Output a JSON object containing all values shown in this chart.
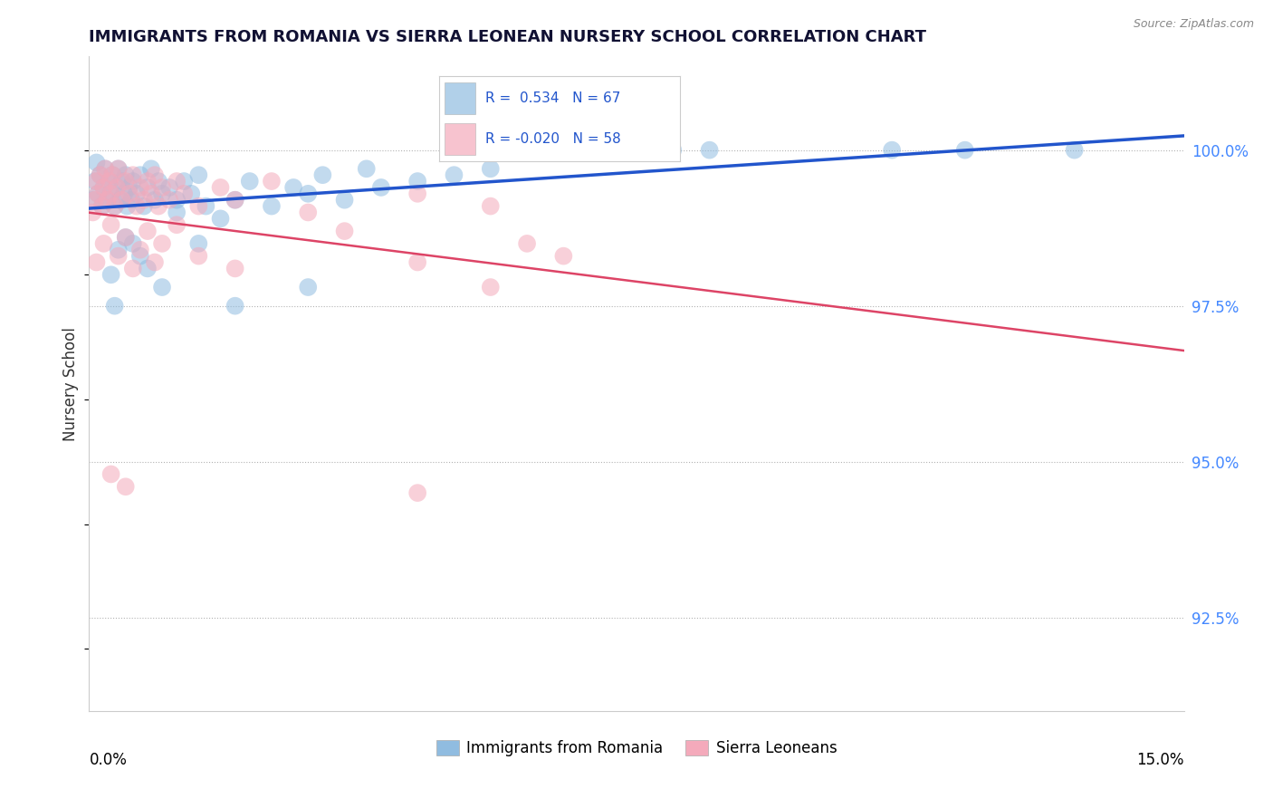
{
  "title": "IMMIGRANTS FROM ROMANIA VS SIERRA LEONEAN NURSERY SCHOOL CORRELATION CHART",
  "source": "Source: ZipAtlas.com",
  "ylabel": "Nursery School",
  "xlim": [
    0.0,
    15.0
  ],
  "ylim": [
    91.0,
    101.5
  ],
  "yticks": [
    92.5,
    95.0,
    97.5,
    100.0
  ],
  "ytick_labels": [
    "92.5%",
    "95.0%",
    "97.5%",
    "100.0%"
  ],
  "legend_entries": [
    "Immigrants from Romania",
    "Sierra Leoneans"
  ],
  "R_romania": 0.534,
  "N_romania": 67,
  "R_sierra": -0.02,
  "N_sierra": 58,
  "color_romania": "#90BCE0",
  "color_sierra": "#F4AABB",
  "trendline_romania": "#2255CC",
  "trendline_sierra": "#DD4466",
  "romania_x": [
    0.05,
    0.08,
    0.1,
    0.12,
    0.15,
    0.18,
    0.2,
    0.22,
    0.25,
    0.28,
    0.3,
    0.32,
    0.35,
    0.38,
    0.4,
    0.42,
    0.45,
    0.48,
    0.5,
    0.52,
    0.55,
    0.58,
    0.6,
    0.65,
    0.7,
    0.75,
    0.8,
    0.85,
    0.9,
    0.95,
    1.0,
    1.1,
    1.2,
    1.3,
    1.4,
    1.5,
    1.6,
    1.8,
    2.0,
    2.2,
    2.5,
    2.8,
    3.0,
    3.2,
    3.5,
    3.8,
    4.0,
    4.5,
    5.0,
    5.5,
    0.3,
    0.4,
    0.5,
    0.6,
    0.7,
    0.8,
    1.0,
    1.5,
    2.0,
    3.0,
    8.0,
    8.5,
    11.0,
    12.0,
    13.5,
    0.35,
    1.2
  ],
  "romania_y": [
    99.2,
    99.5,
    99.8,
    99.3,
    99.6,
    99.1,
    99.4,
    99.7,
    99.2,
    99.5,
    99.3,
    99.6,
    99.1,
    99.4,
    99.7,
    99.2,
    99.5,
    99.3,
    99.6,
    99.1,
    99.4,
    99.2,
    99.5,
    99.3,
    99.6,
    99.1,
    99.4,
    99.7,
    99.2,
    99.5,
    99.3,
    99.4,
    99.2,
    99.5,
    99.3,
    99.6,
    99.1,
    98.9,
    99.2,
    99.5,
    99.1,
    99.4,
    99.3,
    99.6,
    99.2,
    99.7,
    99.4,
    99.5,
    99.6,
    99.7,
    98.0,
    98.4,
    98.6,
    98.5,
    98.3,
    98.1,
    97.8,
    98.5,
    97.5,
    97.8,
    100.0,
    100.0,
    100.0,
    100.0,
    100.0,
    97.5,
    99.0
  ],
  "sierra_x": [
    0.05,
    0.08,
    0.1,
    0.12,
    0.15,
    0.18,
    0.2,
    0.22,
    0.25,
    0.28,
    0.3,
    0.32,
    0.35,
    0.38,
    0.4,
    0.45,
    0.5,
    0.55,
    0.6,
    0.65,
    0.7,
    0.75,
    0.8,
    0.85,
    0.9,
    0.95,
    1.0,
    1.1,
    1.2,
    1.3,
    1.5,
    1.8,
    2.0,
    2.5,
    3.0,
    4.5,
    5.5,
    0.1,
    0.2,
    0.3,
    0.4,
    0.5,
    0.6,
    0.7,
    0.8,
    0.9,
    1.0,
    1.2,
    1.5,
    2.0,
    3.5,
    4.5,
    5.5,
    6.0,
    6.5,
    0.3,
    0.5,
    4.5
  ],
  "sierra_y": [
    99.0,
    99.2,
    99.5,
    99.3,
    99.6,
    99.1,
    99.4,
    99.7,
    99.2,
    99.5,
    99.3,
    99.6,
    99.1,
    99.4,
    99.7,
    99.2,
    99.5,
    99.3,
    99.6,
    99.1,
    99.4,
    99.2,
    99.5,
    99.3,
    99.6,
    99.1,
    99.4,
    99.2,
    99.5,
    99.3,
    99.1,
    99.4,
    99.2,
    99.5,
    99.0,
    99.3,
    99.1,
    98.2,
    98.5,
    98.8,
    98.3,
    98.6,
    98.1,
    98.4,
    98.7,
    98.2,
    98.5,
    98.8,
    98.3,
    98.1,
    98.7,
    98.2,
    97.8,
    98.5,
    98.3,
    94.8,
    94.6,
    94.5
  ]
}
